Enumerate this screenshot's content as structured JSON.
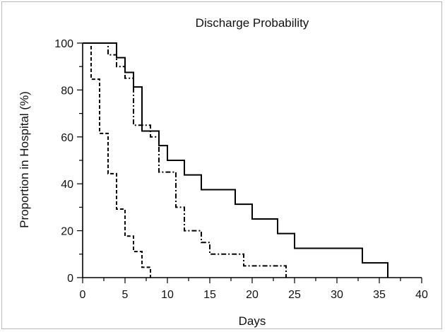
{
  "chart_data": {
    "type": "line",
    "title": "Discharge Probability",
    "xlabel": "Days",
    "ylabel": "Proportion in Hospital (%)",
    "xlim": [
      0,
      40
    ],
    "ylim": [
      0,
      100
    ],
    "x_ticks": [
      0,
      5,
      10,
      15,
      20,
      25,
      30,
      35,
      40
    ],
    "y_ticks": [
      0,
      20,
      40,
      60,
      80,
      100
    ],
    "grid": false,
    "legend": "none",
    "step": "post",
    "series": [
      {
        "line_style": "solid",
        "color": "#000000",
        "x": [
          0,
          4,
          5,
          6,
          7,
          9,
          10,
          12,
          14,
          18,
          20,
          23,
          25,
          33,
          36
        ],
        "y": [
          100,
          93.8,
          87.5,
          81.3,
          62.5,
          56.3,
          50,
          43.8,
          37.5,
          31.3,
          25,
          18.8,
          12.5,
          6.3,
          0
        ]
      },
      {
        "line_style": "dash-dot",
        "color": "#000000",
        "x": [
          0,
          3,
          4,
          5,
          6,
          8,
          9,
          11,
          12,
          14,
          15,
          19,
          24
        ],
        "y": [
          100,
          95,
          90,
          85,
          65,
          60,
          45,
          30,
          20,
          15,
          10,
          5,
          0
        ]
      },
      {
        "line_style": "dashed",
        "color": "#000000",
        "x": [
          0,
          1,
          2,
          3,
          4,
          5,
          6,
          7,
          8
        ],
        "y": [
          100,
          84.6,
          61.5,
          44.3,
          29.2,
          17.7,
          11.1,
          4.4,
          0
        ]
      }
    ]
  }
}
